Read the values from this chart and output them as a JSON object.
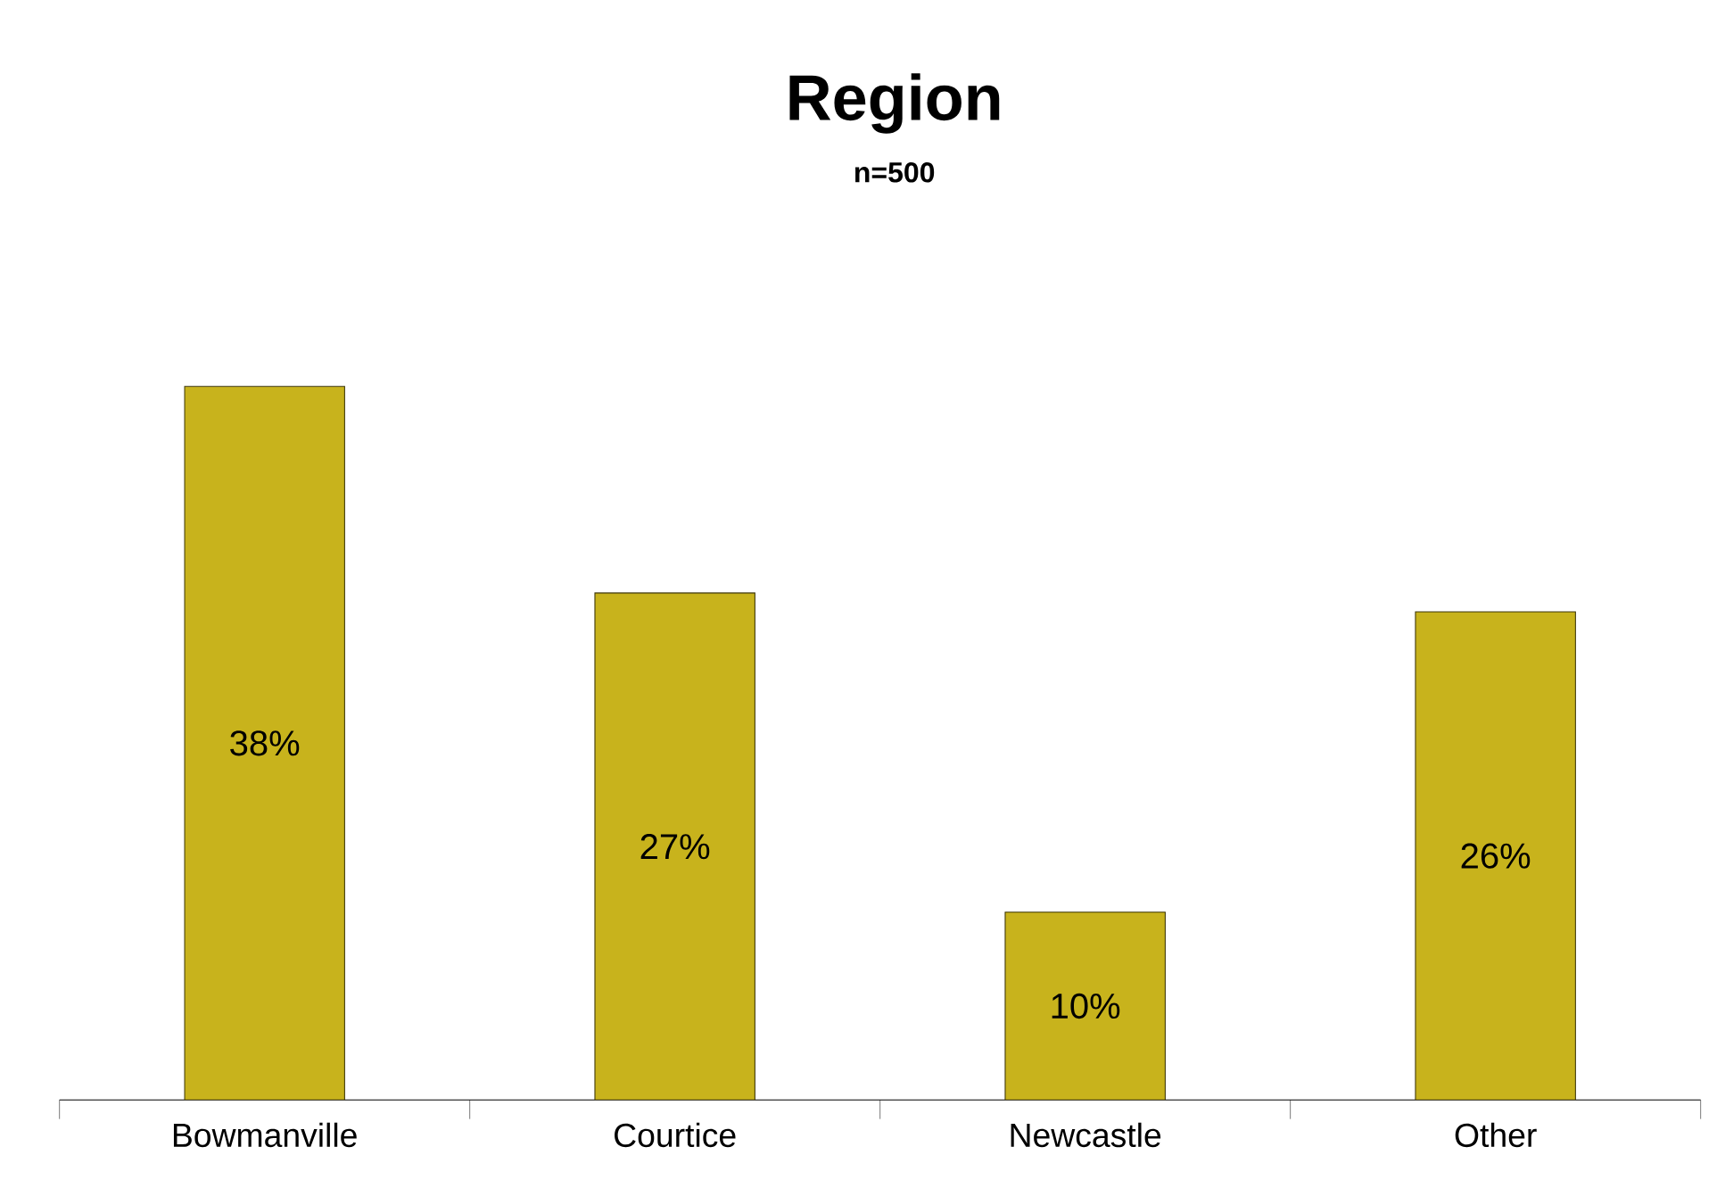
{
  "chart_data": {
    "type": "bar",
    "title": "Region",
    "subtitle": "n=500",
    "categories": [
      "Bowmanville",
      "Courtice",
      "Newcastle",
      "Other"
    ],
    "values": [
      38,
      27,
      10,
      26
    ],
    "value_labels": [
      "38%",
      "27%",
      "10%",
      "26%"
    ],
    "color": "#c8b31c"
  }
}
